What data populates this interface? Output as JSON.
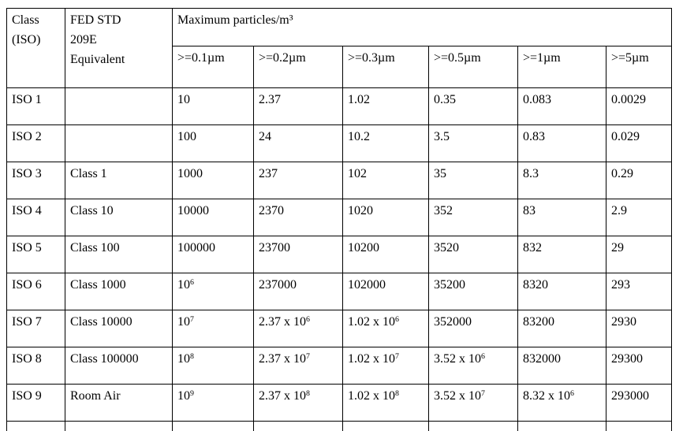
{
  "chart_data": {
    "type": "table",
    "merged_header": "Maximum particles/m³",
    "corner_headers": {
      "class": "Class\n(ISO)",
      "fed_std": "FED STD\n209E\nEquivalent"
    },
    "particle_size_columns": [
      ">=0.1µm",
      ">=0.2µm",
      ">=0.3µm",
      ">=0.5µm",
      ">=1µm",
      ">=5µm"
    ],
    "rows": [
      {
        "iso_class": "ISO 1",
        "fed_std_equivalent": "",
        "values": [
          "10",
          "2.37",
          "1.02",
          "0.35",
          "0.083",
          "0.0029"
        ]
      },
      {
        "iso_class": "ISO 2",
        "fed_std_equivalent": "",
        "values": [
          "100",
          "24",
          "10.2",
          "3.5",
          "0.83",
          "0.029"
        ]
      },
      {
        "iso_class": "ISO 3",
        "fed_std_equivalent": "Class 1",
        "values": [
          "1000",
          "237",
          "102",
          "35",
          "8.3",
          "0.29"
        ]
      },
      {
        "iso_class": "ISO 4",
        "fed_std_equivalent": "Class 10",
        "values": [
          "10000",
          "2370",
          "1020",
          "352",
          "83",
          "2.9"
        ]
      },
      {
        "iso_class": "ISO 5",
        "fed_std_equivalent": "Class 100",
        "values": [
          "100000",
          "23700",
          "10200",
          "3520",
          "832",
          "29"
        ]
      },
      {
        "iso_class": "ISO 6",
        "fed_std_equivalent": "Class 1000",
        "values": [
          "10^6",
          "237000",
          "102000",
          "35200",
          "8320",
          "293"
        ]
      },
      {
        "iso_class": "ISO 7",
        "fed_std_equivalent": "Class 10000",
        "values": [
          "10^7",
          "2.37 x 10^6",
          "1.02 x 10^6",
          "352000",
          "83200",
          "2930"
        ]
      },
      {
        "iso_class": "ISO 8",
        "fed_std_equivalent": "Class 100000",
        "values": [
          "10^8",
          "2.37 x 10^7",
          "1.02 x 10^7",
          "3.52 x 10^6",
          "832000",
          "29300"
        ]
      },
      {
        "iso_class": "ISO 9",
        "fed_std_equivalent": "Room Air",
        "values": [
          "10^9",
          "2.37 x 10^8",
          "1.02 x 10^8",
          "3.52 x 10^7",
          "8.32 x 10^6",
          "293000"
        ]
      }
    ],
    "colors": {
      "border": "#000000",
      "text": "#000000",
      "background": "#ffffff"
    }
  }
}
